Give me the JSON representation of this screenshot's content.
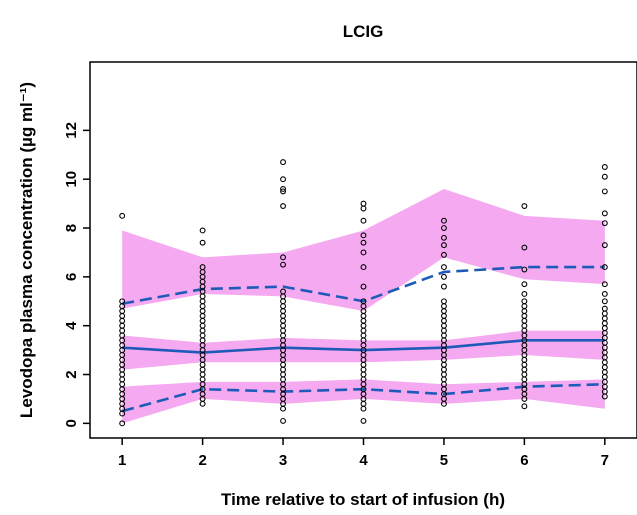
{
  "chart_data": {
    "type": "scatter",
    "title": "LCIG",
    "xlabel": "Time relative to start of infusion (h)",
    "ylabel": "Levodopa plasma concentration (µg ml⁻¹)",
    "xlim": [
      0.6,
      7.4
    ],
    "ylim": [
      -0.6,
      14.8
    ],
    "x_ticks": [
      1,
      2,
      3,
      4,
      5,
      6,
      7
    ],
    "y_ticks": [
      0,
      2,
      4,
      6,
      8,
      10,
      12
    ],
    "grid": false,
    "legend": "none",
    "colors": {
      "band": "#f5a9f0",
      "line": "#1e5bb8",
      "points": "#000000"
    },
    "bands": [
      {
        "x": [
          1,
          2,
          3,
          4,
          5,
          6,
          7
        ],
        "lower": [
          4.7,
          5.3,
          5.2,
          4.6,
          6.8,
          5.9,
          5.7
        ],
        "upper": [
          7.9,
          6.8,
          7.0,
          7.9,
          9.6,
          8.5,
          8.3
        ]
      },
      {
        "x": [
          1,
          2,
          3,
          4,
          5,
          6,
          7
        ],
        "lower": [
          2.2,
          2.5,
          2.5,
          2.5,
          2.6,
          2.8,
          2.6
        ],
        "upper": [
          3.6,
          3.3,
          3.5,
          3.4,
          3.4,
          3.8,
          3.8
        ]
      },
      {
        "x": [
          1,
          2,
          3,
          4,
          5,
          6,
          7
        ],
        "lower": [
          0.0,
          1.0,
          0.8,
          1.0,
          0.8,
          1.0,
          0.6
        ],
        "upper": [
          1.5,
          1.7,
          1.7,
          1.8,
          1.6,
          1.7,
          1.8
        ]
      }
    ],
    "series": [
      {
        "style": "dashed",
        "x": [
          1,
          2,
          3,
          4,
          5,
          6,
          7
        ],
        "y": [
          4.9,
          5.5,
          5.6,
          5.0,
          6.2,
          6.4,
          6.4
        ]
      },
      {
        "style": "solid",
        "x": [
          1,
          2,
          3,
          4,
          5,
          6,
          7
        ],
        "y": [
          3.1,
          2.9,
          3.1,
          3.0,
          3.1,
          3.4,
          3.4
        ]
      },
      {
        "style": "dashed",
        "x": [
          1,
          2,
          3,
          4,
          5,
          6,
          7
        ],
        "y": [
          0.5,
          1.4,
          1.3,
          1.4,
          1.2,
          1.5,
          1.6
        ]
      }
    ],
    "points": [
      {
        "x": 1,
        "y": [
          0.0,
          0.4,
          0.6,
          0.8,
          1.0,
          1.2,
          1.4,
          1.6,
          1.8,
          2.0,
          2.2,
          2.4,
          2.6,
          2.8,
          3.0,
          3.2,
          3.4,
          3.6,
          3.8,
          4.0,
          4.2,
          4.4,
          4.6,
          4.8,
          5.0,
          8.5
        ]
      },
      {
        "x": 2,
        "y": [
          0.8,
          1.0,
          1.2,
          1.4,
          1.6,
          1.8,
          2.0,
          2.2,
          2.4,
          2.6,
          2.8,
          3.0,
          3.2,
          3.4,
          3.6,
          3.8,
          4.0,
          4.2,
          4.4,
          4.6,
          4.8,
          5.0,
          5.2,
          5.4,
          5.6,
          5.8,
          6.0,
          6.2,
          6.4,
          7.4,
          7.9
        ]
      },
      {
        "x": 3,
        "y": [
          0.1,
          0.6,
          0.8,
          1.0,
          1.2,
          1.4,
          1.6,
          1.8,
          2.0,
          2.2,
          2.4,
          2.6,
          2.8,
          3.0,
          3.2,
          3.4,
          3.6,
          3.8,
          4.0,
          4.2,
          4.4,
          4.6,
          4.8,
          5.0,
          5.2,
          5.4,
          6.5,
          6.8,
          8.9,
          9.5,
          9.6,
          10.0,
          10.7
        ]
      },
      {
        "x": 4,
        "y": [
          0.1,
          0.6,
          0.8,
          1.0,
          1.2,
          1.4,
          1.6,
          1.8,
          2.0,
          2.2,
          2.4,
          2.6,
          2.8,
          3.0,
          3.2,
          3.4,
          3.6,
          3.8,
          4.0,
          4.2,
          4.4,
          4.6,
          4.8,
          5.0,
          5.6,
          6.4,
          7.0,
          7.4,
          7.7,
          8.3,
          8.8,
          9.0
        ]
      },
      {
        "x": 5,
        "y": [
          0.8,
          1.0,
          1.2,
          1.4,
          1.6,
          1.8,
          2.0,
          2.2,
          2.4,
          2.6,
          2.8,
          3.0,
          3.2,
          3.4,
          3.6,
          3.8,
          4.0,
          4.2,
          4.4,
          4.6,
          4.8,
          5.0,
          5.6,
          6.0,
          6.4,
          6.9,
          7.3,
          7.6,
          8.0,
          8.3
        ]
      },
      {
        "x": 6,
        "y": [
          0.7,
          1.0,
          1.2,
          1.4,
          1.6,
          1.8,
          2.0,
          2.2,
          2.4,
          2.6,
          2.8,
          3.0,
          3.2,
          3.4,
          3.6,
          3.8,
          4.0,
          4.2,
          4.4,
          4.6,
          4.8,
          5.0,
          5.3,
          5.7,
          6.3,
          7.2,
          8.9
        ]
      },
      {
        "x": 7,
        "y": [
          1.1,
          1.3,
          1.5,
          1.7,
          1.9,
          2.1,
          2.3,
          2.5,
          2.7,
          2.9,
          3.1,
          3.3,
          3.5,
          3.7,
          3.9,
          4.1,
          4.3,
          4.5,
          4.7,
          5.0,
          5.3,
          5.7,
          6.4,
          7.3,
          8.2,
          8.6,
          9.5,
          10.1,
          10.5
        ]
      }
    ]
  }
}
